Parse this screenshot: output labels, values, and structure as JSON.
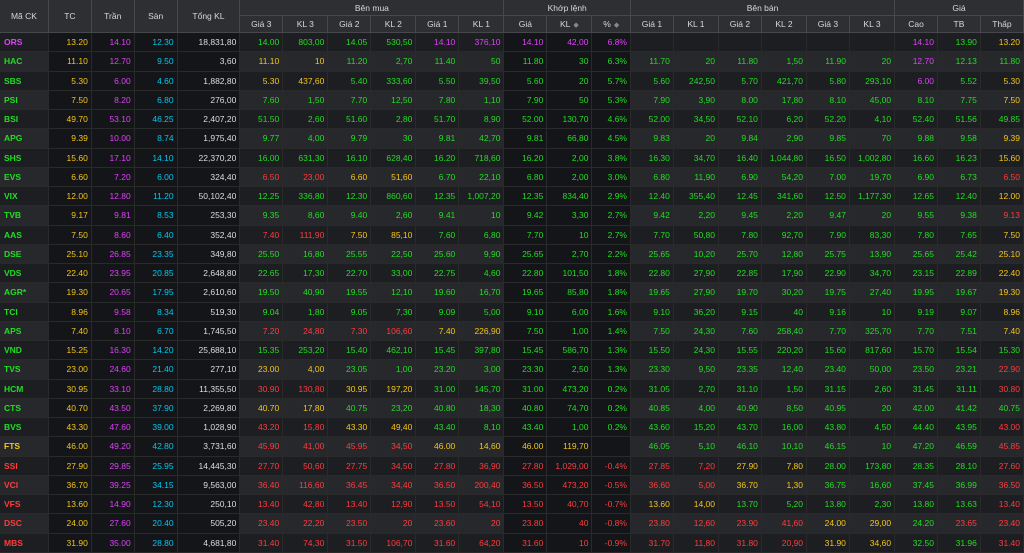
{
  "colors": {
    "ceil": "#e040fb",
    "floor": "#00c8f0",
    "ref": "#f5c518",
    "up": "#22dd22",
    "down": "#ff3b3b",
    "text": "#dddddd",
    "header_bg": "#2e2f33"
  },
  "headers": {
    "symbol": "Mã CK",
    "ref": "TC",
    "ceil": "Trần",
    "floor": "Sàn",
    "total_vol": "Tổng KL",
    "buy_group": "Bên mua",
    "match_group": "Khớp lệnh",
    "sell_group": "Bên bán",
    "stats_group": "Giá",
    "buy_cols": [
      "Giá 3",
      "KL 3",
      "Giá 2",
      "KL 2",
      "Giá 1",
      "KL 1"
    ],
    "match_cols": [
      "Giá",
      "KL",
      "%"
    ],
    "sell_cols": [
      "Giá 1",
      "KL 1",
      "Giá 2",
      "KL 2",
      "Giá 3",
      "KL 3"
    ],
    "stats_cols": [
      "Cao",
      "TB",
      "Thấp"
    ]
  },
  "rows": [
    {
      "symbol": "ORS",
      "ref": "13.20",
      "ceil": "14.10",
      "floor": "12.30",
      "vol": "18,831,80",
      "buy": [
        "14.00",
        "803,00",
        "14.05",
        "530,50",
        "14.10",
        "376,10"
      ],
      "match": [
        "14.10",
        "42,00",
        "6.8%"
      ],
      "sell": [
        "",
        "",
        "",
        "",
        "",
        ""
      ],
      "stats": [
        "14.10",
        "13.90",
        "13.20"
      ]
    },
    {
      "symbol": "HAC",
      "ref": "11.10",
      "ceil": "12.70",
      "floor": "9.50",
      "vol": "3,60",
      "buy": [
        "11.10",
        "10",
        "11.20",
        "2,70",
        "11.40",
        "50"
      ],
      "match": [
        "11.80",
        "30",
        "6.3%"
      ],
      "sell": [
        "11.70",
        "20",
        "11.80",
        "1,50",
        "11.90",
        "20"
      ],
      "stats": [
        "12.70",
        "12.13",
        "11.80"
      ]
    },
    {
      "symbol": "SBS",
      "ref": "5.30",
      "ceil": "6.00",
      "floor": "4.60",
      "vol": "1,882,80",
      "buy": [
        "5.30",
        "437,60",
        "5.40",
        "333,60",
        "5.50",
        "39,50"
      ],
      "match": [
        "5.60",
        "20",
        "5.7%"
      ],
      "sell": [
        "5.60",
        "242,50",
        "5.70",
        "421,70",
        "5.80",
        "293,10"
      ],
      "stats": [
        "6.00",
        "5.52",
        "5.30"
      ]
    },
    {
      "symbol": "PSI",
      "ref": "7.50",
      "ceil": "8.20",
      "floor": "6.80",
      "vol": "276,00",
      "buy": [
        "7.60",
        "1,50",
        "7.70",
        "12,50",
        "7.80",
        "1,10"
      ],
      "match": [
        "7.90",
        "50",
        "5.3%"
      ],
      "sell": [
        "7.90",
        "3,90",
        "8.00",
        "17,80",
        "8.10",
        "45,00"
      ],
      "stats": [
        "8.10",
        "7.75",
        "7.50"
      ]
    },
    {
      "symbol": "BSI",
      "ref": "49.70",
      "ceil": "53.10",
      "floor": "46.25",
      "vol": "2,407,20",
      "buy": [
        "51.50",
        "2,60",
        "51.60",
        "2,80",
        "51.70",
        "8,90"
      ],
      "match": [
        "52.00",
        "130,70",
        "4.6%"
      ],
      "sell": [
        "52.00",
        "34,50",
        "52.10",
        "6,20",
        "52.20",
        "4,10"
      ],
      "stats": [
        "52.40",
        "51.56",
        "49.85"
      ]
    },
    {
      "symbol": "APG",
      "ref": "9.39",
      "ceil": "10.00",
      "floor": "8.74",
      "vol": "1,975,40",
      "buy": [
        "9.77",
        "4,00",
        "9.79",
        "30",
        "9.81",
        "42,70"
      ],
      "match": [
        "9.81",
        "66,80",
        "4.5%"
      ],
      "sell": [
        "9.83",
        "20",
        "9.84",
        "2,90",
        "9.85",
        "70"
      ],
      "stats": [
        "9.88",
        "9.58",
        "9.39"
      ]
    },
    {
      "symbol": "SHS",
      "ref": "15.60",
      "ceil": "17.10",
      "floor": "14.10",
      "vol": "22,370,20",
      "buy": [
        "16.00",
        "631,30",
        "16.10",
        "628,40",
        "16.20",
        "718,60"
      ],
      "match": [
        "16.20",
        "2,00",
        "3.8%"
      ],
      "sell": [
        "16.30",
        "34,70",
        "16.40",
        "1,044,80",
        "16.50",
        "1,002,80"
      ],
      "stats": [
        "16.60",
        "16.23",
        "15.60"
      ]
    },
    {
      "symbol": "EVS",
      "ref": "6.60",
      "ceil": "7.20",
      "floor": "6.00",
      "vol": "324,40",
      "buy": [
        "6.50",
        "23,00",
        "6.60",
        "51,60",
        "6.70",
        "22,10"
      ],
      "match": [
        "6.80",
        "2,00",
        "3.0%"
      ],
      "sell": [
        "6.80",
        "11,90",
        "6.90",
        "54,20",
        "7.00",
        "19,70"
      ],
      "stats": [
        "6.90",
        "6.73",
        "6.50"
      ]
    },
    {
      "symbol": "VIX",
      "ref": "12.00",
      "ceil": "12.80",
      "floor": "11.20",
      "vol": "50,102,40",
      "buy": [
        "12.25",
        "336,80",
        "12.30",
        "860,60",
        "12.35",
        "1,007,20"
      ],
      "match": [
        "12.35",
        "834,40",
        "2.9%"
      ],
      "sell": [
        "12.40",
        "355,40",
        "12.45",
        "341,60",
        "12.50",
        "1,177,30"
      ],
      "stats": [
        "12.65",
        "12.40",
        "12.00"
      ]
    },
    {
      "symbol": "TVB",
      "ref": "9.17",
      "ceil": "9.81",
      "floor": "8.53",
      "vol": "253,30",
      "buy": [
        "9.35",
        "8,60",
        "9.40",
        "2,60",
        "9.41",
        "10"
      ],
      "match": [
        "9.42",
        "3,30",
        "2.7%"
      ],
      "sell": [
        "9.42",
        "2,20",
        "9.45",
        "2,20",
        "9.47",
        "20"
      ],
      "stats": [
        "9.55",
        "9.38",
        "9.13"
      ]
    },
    {
      "symbol": "AAS",
      "ref": "7.50",
      "ceil": "8.60",
      "floor": "6.40",
      "vol": "352,40",
      "buy": [
        "7.40",
        "111,90",
        "7.50",
        "85,10",
        "7.60",
        "6,80"
      ],
      "match": [
        "7.70",
        "10",
        "2.7%"
      ],
      "sell": [
        "7.70",
        "50,80",
        "7.80",
        "92,70",
        "7.90",
        "83,30"
      ],
      "stats": [
        "7.80",
        "7.65",
        "7.50"
      ]
    },
    {
      "symbol": "DSE",
      "ref": "25.10",
      "ceil": "26.85",
      "floor": "23.35",
      "vol": "349,80",
      "buy": [
        "25.50",
        "16,80",
        "25.55",
        "22,50",
        "25.60",
        "9,90"
      ],
      "match": [
        "25.65",
        "2,70",
        "2.2%"
      ],
      "sell": [
        "25.65",
        "10,20",
        "25.70",
        "12,80",
        "25.75",
        "13,90"
      ],
      "stats": [
        "25.65",
        "25.42",
        "25.10"
      ]
    },
    {
      "symbol": "VDS",
      "ref": "22.40",
      "ceil": "23.95",
      "floor": "20.85",
      "vol": "2,648,80",
      "buy": [
        "22.65",
        "17,30",
        "22.70",
        "33,00",
        "22.75",
        "4,60"
      ],
      "match": [
        "22.80",
        "101,50",
        "1.8%"
      ],
      "sell": [
        "22.80",
        "27,90",
        "22.85",
        "17,90",
        "22.90",
        "34,70"
      ],
      "stats": [
        "23.15",
        "22.89",
        "22.40"
      ]
    },
    {
      "symbol": "AGR*",
      "ref": "19.30",
      "ceil": "20.65",
      "floor": "17.95",
      "vol": "2,610,60",
      "buy": [
        "19.50",
        "40,90",
        "19.55",
        "12,10",
        "19.60",
        "16,70"
      ],
      "match": [
        "19.65",
        "85,80",
        "1.8%"
      ],
      "sell": [
        "19.65",
        "27,90",
        "19.70",
        "30,20",
        "19.75",
        "27,40"
      ],
      "stats": [
        "19.95",
        "19.67",
        "19.30"
      ]
    },
    {
      "symbol": "TCI",
      "ref": "8.96",
      "ceil": "9.58",
      "floor": "8.34",
      "vol": "519,30",
      "buy": [
        "9.04",
        "1,80",
        "9.05",
        "7,30",
        "9.09",
        "5,00"
      ],
      "match": [
        "9.10",
        "6,00",
        "1.6%"
      ],
      "sell": [
        "9.10",
        "36,20",
        "9.15",
        "40",
        "9.16",
        "10"
      ],
      "stats": [
        "9.19",
        "9.07",
        "8.96"
      ]
    },
    {
      "symbol": "APS",
      "ref": "7.40",
      "ceil": "8.10",
      "floor": "6.70",
      "vol": "1,745,50",
      "buy": [
        "7.20",
        "24,80",
        "7.30",
        "106,60",
        "7.40",
        "226,90"
      ],
      "match": [
        "7.50",
        "1,00",
        "1.4%"
      ],
      "sell": [
        "7.50",
        "24,30",
        "7.60",
        "258,40",
        "7.70",
        "325,70"
      ],
      "stats": [
        "7.70",
        "7.51",
        "7.40"
      ]
    },
    {
      "symbol": "VND",
      "ref": "15.25",
      "ceil": "16.30",
      "floor": "14.20",
      "vol": "25,688,10",
      "buy": [
        "15.35",
        "253,20",
        "15.40",
        "462,10",
        "15.45",
        "397,80"
      ],
      "match": [
        "15.45",
        "586,70",
        "1.3%"
      ],
      "sell": [
        "15.50",
        "24,30",
        "15.55",
        "220,20",
        "15.60",
        "817,60"
      ],
      "stats": [
        "15.70",
        "15.54",
        "15.30"
      ]
    },
    {
      "symbol": "TVS",
      "ref": "23.00",
      "ceil": "24.60",
      "floor": "21.40",
      "vol": "277,10",
      "buy": [
        "23.00",
        "4,00",
        "23.05",
        "1,00",
        "23.20",
        "3,00"
      ],
      "match": [
        "23.30",
        "2,50",
        "1.3%"
      ],
      "sell": [
        "23.30",
        "9,50",
        "23.35",
        "12,40",
        "23.40",
        "50,00"
      ],
      "stats": [
        "23.50",
        "23.21",
        "22.90"
      ]
    },
    {
      "symbol": "HCM",
      "ref": "30.95",
      "ceil": "33.10",
      "floor": "28.80",
      "vol": "11,355,50",
      "buy": [
        "30.90",
        "130,80",
        "30.95",
        "197,20",
        "31.00",
        "145,70"
      ],
      "match": [
        "31.00",
        "473,20",
        "0.2%"
      ],
      "sell": [
        "31.05",
        "2,70",
        "31.10",
        "1,50",
        "31.15",
        "2,60"
      ],
      "stats": [
        "31.45",
        "31.11",
        "30.80"
      ]
    },
    {
      "symbol": "CTS",
      "ref": "40.70",
      "ceil": "43.50",
      "floor": "37.90",
      "vol": "2,269,80",
      "buy": [
        "40.70",
        "17,80",
        "40.75",
        "23,20",
        "40.80",
        "18,30"
      ],
      "match": [
        "40.80",
        "74,70",
        "0.2%"
      ],
      "sell": [
        "40.85",
        "4,00",
        "40.90",
        "8,50",
        "40.95",
        "20"
      ],
      "stats": [
        "42.00",
        "41.42",
        "40.75"
      ]
    },
    {
      "symbol": "BVS",
      "ref": "43.30",
      "ceil": "47.60",
      "floor": "39.00",
      "vol": "1,028,90",
      "buy": [
        "43.20",
        "15,80",
        "43.30",
        "49,40",
        "43.40",
        "8,10"
      ],
      "match": [
        "43.40",
        "1,00",
        "0.2%"
      ],
      "sell": [
        "43.60",
        "15,20",
        "43.70",
        "16,00",
        "43.80",
        "4,50"
      ],
      "stats": [
        "44.40",
        "43.95",
        "43.00"
      ]
    },
    {
      "symbol": "FTS",
      "ref": "46.00",
      "ceil": "49.20",
      "floor": "42.80",
      "vol": "3,731,60",
      "buy": [
        "45.90",
        "41,00",
        "45.95",
        "34,50",
        "46.00",
        "14,60"
      ],
      "match": [
        "46.00",
        "119,70",
        ""
      ],
      "sell": [
        "46.05",
        "5,10",
        "46.10",
        "10,10",
        "46.15",
        "10"
      ],
      "stats": [
        "47.20",
        "46.59",
        "45.85"
      ]
    },
    {
      "symbol": "SSI",
      "ref": "27.90",
      "ceil": "29.85",
      "floor": "25.95",
      "vol": "14,445,30",
      "buy": [
        "27.70",
        "50,60",
        "27.75",
        "34,50",
        "27.80",
        "36,90"
      ],
      "match": [
        "27.80",
        "1,029,00",
        "-0.4%"
      ],
      "sell": [
        "27.85",
        "7,20",
        "27.90",
        "7,80",
        "28.00",
        "173,80"
      ],
      "stats": [
        "28.35",
        "28.10",
        "27.60"
      ]
    },
    {
      "symbol": "VCI",
      "ref": "36.70",
      "ceil": "39.25",
      "floor": "34.15",
      "vol": "9,563,00",
      "buy": [
        "36.40",
        "116,60",
        "36.45",
        "34,40",
        "36.50",
        "200,40"
      ],
      "match": [
        "36.50",
        "473,20",
        "-0.5%"
      ],
      "sell": [
        "36.60",
        "5,00",
        "36.70",
        "1,30",
        "36.75",
        "16,60"
      ],
      "stats": [
        "37.45",
        "36.99",
        "36.50"
      ]
    },
    {
      "symbol": "VFS",
      "ref": "13.60",
      "ceil": "14.90",
      "floor": "12.30",
      "vol": "250,10",
      "buy": [
        "13.40",
        "42,80",
        "13.40",
        "12,90",
        "13.50",
        "54,10"
      ],
      "match": [
        "13.50",
        "40,70",
        "-0.7%"
      ],
      "sell": [
        "13.60",
        "14,00",
        "13.70",
        "5,20",
        "13.80",
        "2,30"
      ],
      "stats": [
        "13.80",
        "13.63",
        "13.40"
      ]
    },
    {
      "symbol": "DSC",
      "ref": "24.00",
      "ceil": "27.60",
      "floor": "20.40",
      "vol": "505,20",
      "buy": [
        "23.40",
        "22,20",
        "23.50",
        "20",
        "23.60",
        "20"
      ],
      "match": [
        "23.80",
        "40",
        "-0.8%"
      ],
      "sell": [
        "23.80",
        "12,60",
        "23.90",
        "41,60",
        "24.00",
        "29,00"
      ],
      "stats": [
        "24.20",
        "23.65",
        "23.40"
      ]
    },
    {
      "symbol": "MBS",
      "ref": "31.90",
      "ceil": "35.00",
      "floor": "28.80",
      "vol": "4,681,80",
      "buy": [
        "31.40",
        "74,30",
        "31.50",
        "106,70",
        "31.60",
        "64,20"
      ],
      "match": [
        "31.60",
        "10",
        "-0.9%"
      ],
      "sell": [
        "31.70",
        "11,80",
        "31.80",
        "20,90",
        "31.90",
        "34,60"
      ],
      "stats": [
        "32.50",
        "31.96",
        "31.40"
      ]
    }
  ]
}
